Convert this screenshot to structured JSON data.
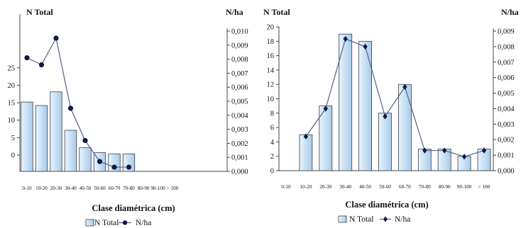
{
  "chart_data": [
    {
      "type": "bar",
      "categories": [
        "0-10",
        "10-20",
        "20-30",
        "30-40",
        "40-50",
        "50-60",
        "60-70",
        "70-80",
        "80-90",
        "90-100",
        "> 100"
      ],
      "series": [
        {
          "name": "N Total",
          "type": "bar",
          "axis": "left",
          "values": [
            15.2,
            14.2,
            18.1,
            7.1,
            2.1,
            0.7,
            0.35,
            0.35,
            null,
            null,
            null
          ]
        },
        {
          "name": "N/ha",
          "type": "line",
          "axis": "right",
          "values": [
            0.0081,
            0.0076,
            0.0095,
            0.0045,
            0.0022,
            0.0007,
            0.0003,
            0.0003,
            null,
            null,
            null
          ]
        }
      ],
      "ylabel": "N Total",
      "y2label": "N/ha",
      "xlabel": "Clase diamétrica (cm)",
      "yticks": [
        "0",
        "5",
        "10",
        "15",
        "20",
        "25"
      ],
      "y2ticks": [
        "0,000",
        "0,001",
        "0,002",
        "0,003",
        "0,004",
        "0,005",
        "0,006",
        "0,007",
        "0,008",
        "0,009",
        "0,010"
      ],
      "y2lim": [
        0,
        0.01
      ],
      "legend": {
        "placement": "bottom",
        "items": [
          "N Total",
          "N/ha"
        ]
      },
      "grid": false
    },
    {
      "type": "bar",
      "categories": [
        "0-10",
        "10-20",
        "20-30",
        "30-40",
        "40-50",
        "50-60",
        "60-70",
        "70-80",
        "80-90",
        "90-100",
        "> 100"
      ],
      "series": [
        {
          "name": "N Total",
          "type": "bar",
          "axis": "left",
          "values": [
            0,
            5,
            9,
            19,
            18,
            8,
            12,
            3,
            3,
            2,
            3
          ]
        },
        {
          "name": "N/ha",
          "type": "line",
          "axis": "right",
          "values": [
            null,
            0.0022,
            0.004,
            0.0085,
            0.008,
            0.0035,
            0.0054,
            0.0013,
            0.0013,
            0.0009,
            0.0013
          ]
        }
      ],
      "ylabel": "N Total",
      "y2label": "N/ha",
      "xlabel": "Clase diamétrica (cm)",
      "yticks": [
        "0",
        "2",
        "4",
        "6",
        "8",
        "10",
        "12",
        "14",
        "16",
        "18",
        "20"
      ],
      "ylim": [
        0,
        20
      ],
      "y2ticks": [
        "0,000",
        "0,001",
        "0,002",
        "0,003",
        "0,004",
        "0,005",
        "0,006",
        "0,007",
        "0,008",
        "0,009"
      ],
      "y2lim": [
        0,
        0.009
      ],
      "legend": {
        "placement": "bottom",
        "items": [
          "N Total",
          "N/ha"
        ]
      },
      "grid": false
    }
  ],
  "colors": {
    "bar_fill": "#c9e1f4",
    "bar_stroke": "#3a3f47",
    "line": "#5a5f88",
    "marker": "#0e1a44",
    "axis": "#444444"
  }
}
